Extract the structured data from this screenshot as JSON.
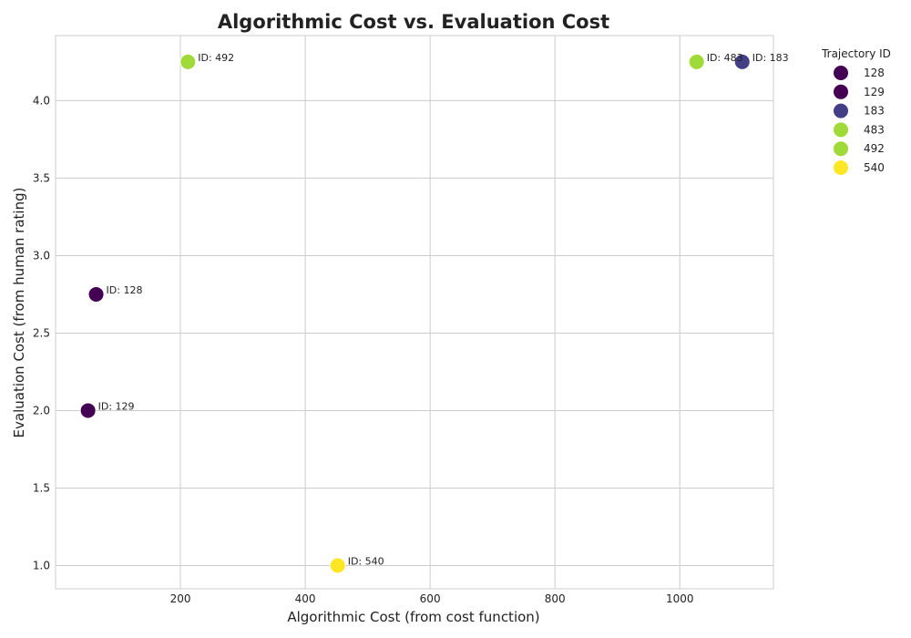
{
  "chart_data": {
    "type": "scatter",
    "title": "Algorithmic Cost vs. Evaluation Cost",
    "xlabel": "Algorithmic Cost (from cost function)",
    "ylabel": "Evaluation Cost (from human rating)",
    "xlim": [
      0,
      1150
    ],
    "ylim": [
      0.85,
      4.42
    ],
    "xticks": [
      200,
      400,
      600,
      800,
      1000
    ],
    "yticks": [
      1.0,
      1.5,
      2.0,
      2.5,
      3.0,
      3.5,
      4.0
    ],
    "grid": true,
    "legend": {
      "title": "Trajectory ID",
      "placement": "outside-top-right"
    },
    "points": [
      {
        "id": "128",
        "x": 65,
        "y": 2.75,
        "label": "ID: 128",
        "color": "#440154"
      },
      {
        "id": "129",
        "x": 52,
        "y": 2.0,
        "label": "ID: 129",
        "color": "#440154"
      },
      {
        "id": "183",
        "x": 1100,
        "y": 4.25,
        "label": "ID: 183",
        "color": "#433e85"
      },
      {
        "id": "483",
        "x": 1027,
        "y": 4.25,
        "label": "ID: 483",
        "color": "#a0da39"
      },
      {
        "id": "492",
        "x": 212,
        "y": 4.25,
        "label": "ID: 492",
        "color": "#a0da39"
      },
      {
        "id": "540",
        "x": 452,
        "y": 1.0,
        "label": "ID: 540",
        "color": "#fde725"
      }
    ]
  }
}
